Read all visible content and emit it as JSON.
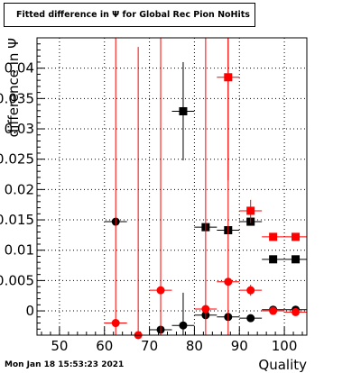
{
  "title": "Fitted difference in  Ψ  for Global Rec Pion NoHits",
  "footer": {
    "timestamp": "Mon Jan 18 15:53:23 2021"
  },
  "chart_data": {
    "type": "scatter",
    "title": "Fitted difference in  Ψ  for Global Rec Pion NoHits",
    "xlabel": "Quality",
    "ylabel": "difference in  Ψ",
    "xlim": [
      45,
      105
    ],
    "ylim": [
      -0.004,
      0.045
    ],
    "grid": true,
    "x_ticks": [
      50,
      60,
      70,
      80,
      90,
      100
    ],
    "x_tick_labels": [
      "50",
      "60",
      "70",
      "80",
      "90",
      "100"
    ],
    "y_ticks": [
      0,
      0.005,
      0.01,
      0.015,
      0.02,
      0.025,
      0.03,
      0.035,
      0.04
    ],
    "y_tick_labels": [
      "0",
      "0.005",
      "0.01",
      "0.015",
      "0.02",
      "0.025",
      "0.03",
      "0.035",
      "0.04"
    ],
    "series": [
      {
        "color": "#000000",
        "color_name": "black",
        "points": [
          {
            "x": 62.5,
            "y": 0.0147,
            "xerr": 2.5,
            "ylo": 0.0147,
            "yhi": 0.0147,
            "marker": "circle"
          },
          {
            "x": 72.5,
            "y": -0.0031,
            "xerr": 2.5,
            "ylo": -0.0031,
            "yhi": -0.0031,
            "marker": "circle"
          },
          {
            "x": 77.5,
            "y": -0.0024,
            "xerr": 2.5,
            "ylo": -0.0045,
            "yhi": 0.003,
            "marker": "circle"
          },
          {
            "x": 82.5,
            "y": -0.0007,
            "xerr": 2.5,
            "ylo": -0.0007,
            "yhi": -0.0007,
            "marker": "circle"
          },
          {
            "x": 87.5,
            "y": -0.001,
            "xerr": 2.5,
            "ylo": -0.001,
            "yhi": -0.001,
            "marker": "circle"
          },
          {
            "x": 92.5,
            "y": -0.0012,
            "xerr": 2.5,
            "ylo": -0.0012,
            "yhi": -0.0012,
            "marker": "circle"
          },
          {
            "x": 97.5,
            "y": 0.0002,
            "xerr": 2.5,
            "ylo": 0.0002,
            "yhi": 0.0002,
            "marker": "circle"
          },
          {
            "x": 102.5,
            "y": 0.0002,
            "xerr": 2.5,
            "ylo": 0.0002,
            "yhi": 0.0002,
            "marker": "circle"
          },
          {
            "x": 77.5,
            "y": 0.0329,
            "xerr": 2.5,
            "ylo": 0.0248,
            "yhi": 0.041,
            "marker": "square"
          },
          {
            "x": 82.5,
            "y": 0.0138,
            "xerr": 2.5,
            "ylo": 0.0138,
            "yhi": 0.0138,
            "marker": "square"
          },
          {
            "x": 87.5,
            "y": 0.0133,
            "xerr": 2.5,
            "ylo": 0.0133,
            "yhi": 0.0133,
            "marker": "square"
          },
          {
            "x": 92.5,
            "y": 0.0147,
            "xerr": 2.5,
            "ylo": 0.0147,
            "yhi": 0.0147,
            "marker": "square"
          },
          {
            "x": 97.5,
            "y": 0.0085,
            "xerr": 2.5,
            "ylo": 0.0085,
            "yhi": 0.0085,
            "marker": "square"
          },
          {
            "x": 102.5,
            "y": 0.0085,
            "xerr": 2.5,
            "ylo": 0.0085,
            "yhi": 0.0085,
            "marker": "square"
          }
        ]
      },
      {
        "color": "#ff0000",
        "color_name": "red",
        "points": [
          {
            "x": 62.5,
            "y": -0.002,
            "xerr": 2.5,
            "ylo": -0.004,
            "yhi": 0.045,
            "marker": "circle"
          },
          {
            "x": 67.5,
            "y": -0.004,
            "xerr": 2.5,
            "ylo": -0.004,
            "yhi": 0.0435,
            "marker": "circle"
          },
          {
            "x": 72.5,
            "y": 0.0034,
            "xerr": 2.5,
            "ylo": -0.004,
            "yhi": 0.045,
            "marker": "circle"
          },
          {
            "x": 82.5,
            "y": 0.0003,
            "xerr": 2.5,
            "ylo": -0.004,
            "yhi": 0.045,
            "marker": "circle"
          },
          {
            "x": 87.5,
            "y": 0.0048,
            "xerr": 2.5,
            "ylo": -0.004,
            "yhi": 0.045,
            "marker": "circle"
          },
          {
            "x": 92.5,
            "y": 0.0034,
            "xerr": 2.5,
            "ylo": 0.0025,
            "yhi": 0.0043,
            "marker": "circle"
          },
          {
            "x": 97.5,
            "y": 0.0,
            "xerr": 2.5,
            "ylo": 0.0,
            "yhi": 0.0,
            "marker": "circle"
          },
          {
            "x": 102.5,
            "y": -0.0002,
            "xerr": 2.5,
            "ylo": -0.0002,
            "yhi": -0.0002,
            "marker": "circle"
          },
          {
            "x": 87.5,
            "y": 0.0385,
            "xerr": 2.5,
            "ylo": 0.0215,
            "yhi": 0.045,
            "marker": "square"
          },
          {
            "x": 92.5,
            "y": 0.0165,
            "xerr": 2.5,
            "ylo": 0.0145,
            "yhi": 0.0183,
            "marker": "square"
          },
          {
            "x": 97.5,
            "y": 0.0122,
            "xerr": 2.5,
            "ylo": 0.0122,
            "yhi": 0.0122,
            "marker": "square"
          },
          {
            "x": 102.5,
            "y": 0.0122,
            "xerr": 2.5,
            "ylo": 0.0122,
            "yhi": 0.0122,
            "marker": "square"
          }
        ]
      }
    ]
  }
}
